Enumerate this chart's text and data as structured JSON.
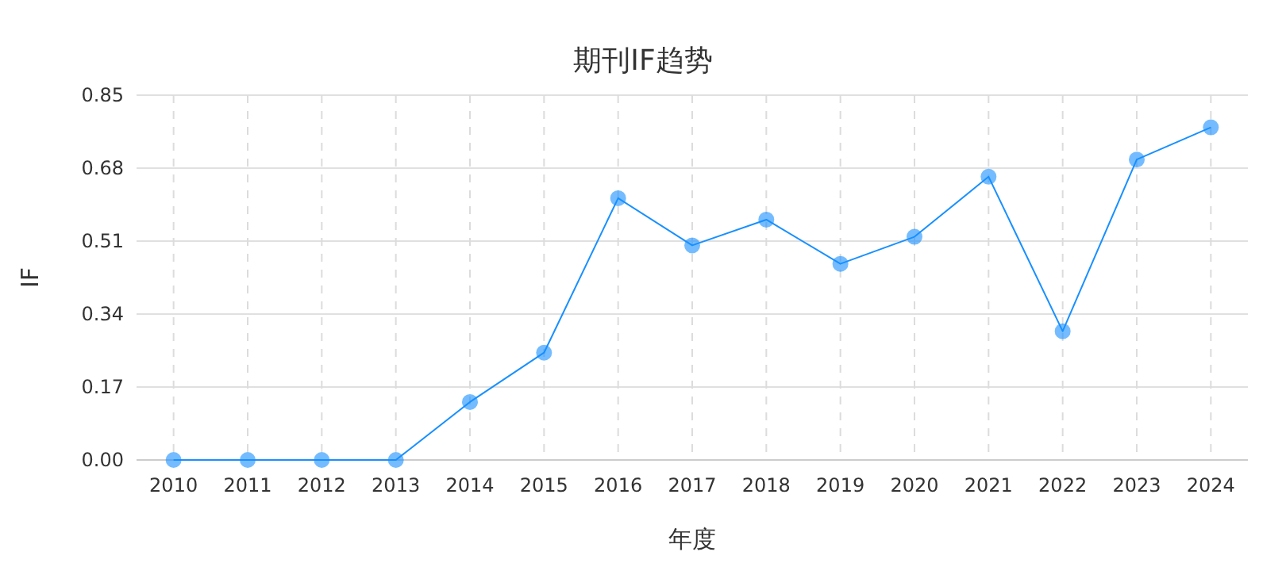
{
  "chart_data": {
    "type": "line",
    "title": "期刊IF趋势",
    "xlabel": "年度",
    "ylabel": "IF",
    "categories": [
      "2010",
      "2011",
      "2012",
      "2013",
      "2014",
      "2015",
      "2016",
      "2017",
      "2018",
      "2019",
      "2020",
      "2021",
      "2022",
      "2023",
      "2024"
    ],
    "series": [
      {
        "color": "#1890ff",
        "values": [
          0,
          0,
          0,
          0,
          0.135,
          0.25,
          0.61,
          0.5,
          0.56,
          0.457,
          0.52,
          0.66,
          0.3,
          0.7,
          0.775
        ]
      }
    ],
    "ylim": [
      0,
      0.85
    ],
    "yticks": [
      {
        "value": 0,
        "label": "0.00"
      },
      {
        "value": 0.17,
        "label": "0.17"
      },
      {
        "value": 0.34,
        "label": "0.34"
      },
      {
        "value": 0.51,
        "label": "0.51"
      },
      {
        "value": 0.68,
        "label": "0.68"
      },
      {
        "value": 0.85,
        "label": "0.85"
      }
    ],
    "grid": true,
    "marker": "circle",
    "line_style": "solid"
  }
}
